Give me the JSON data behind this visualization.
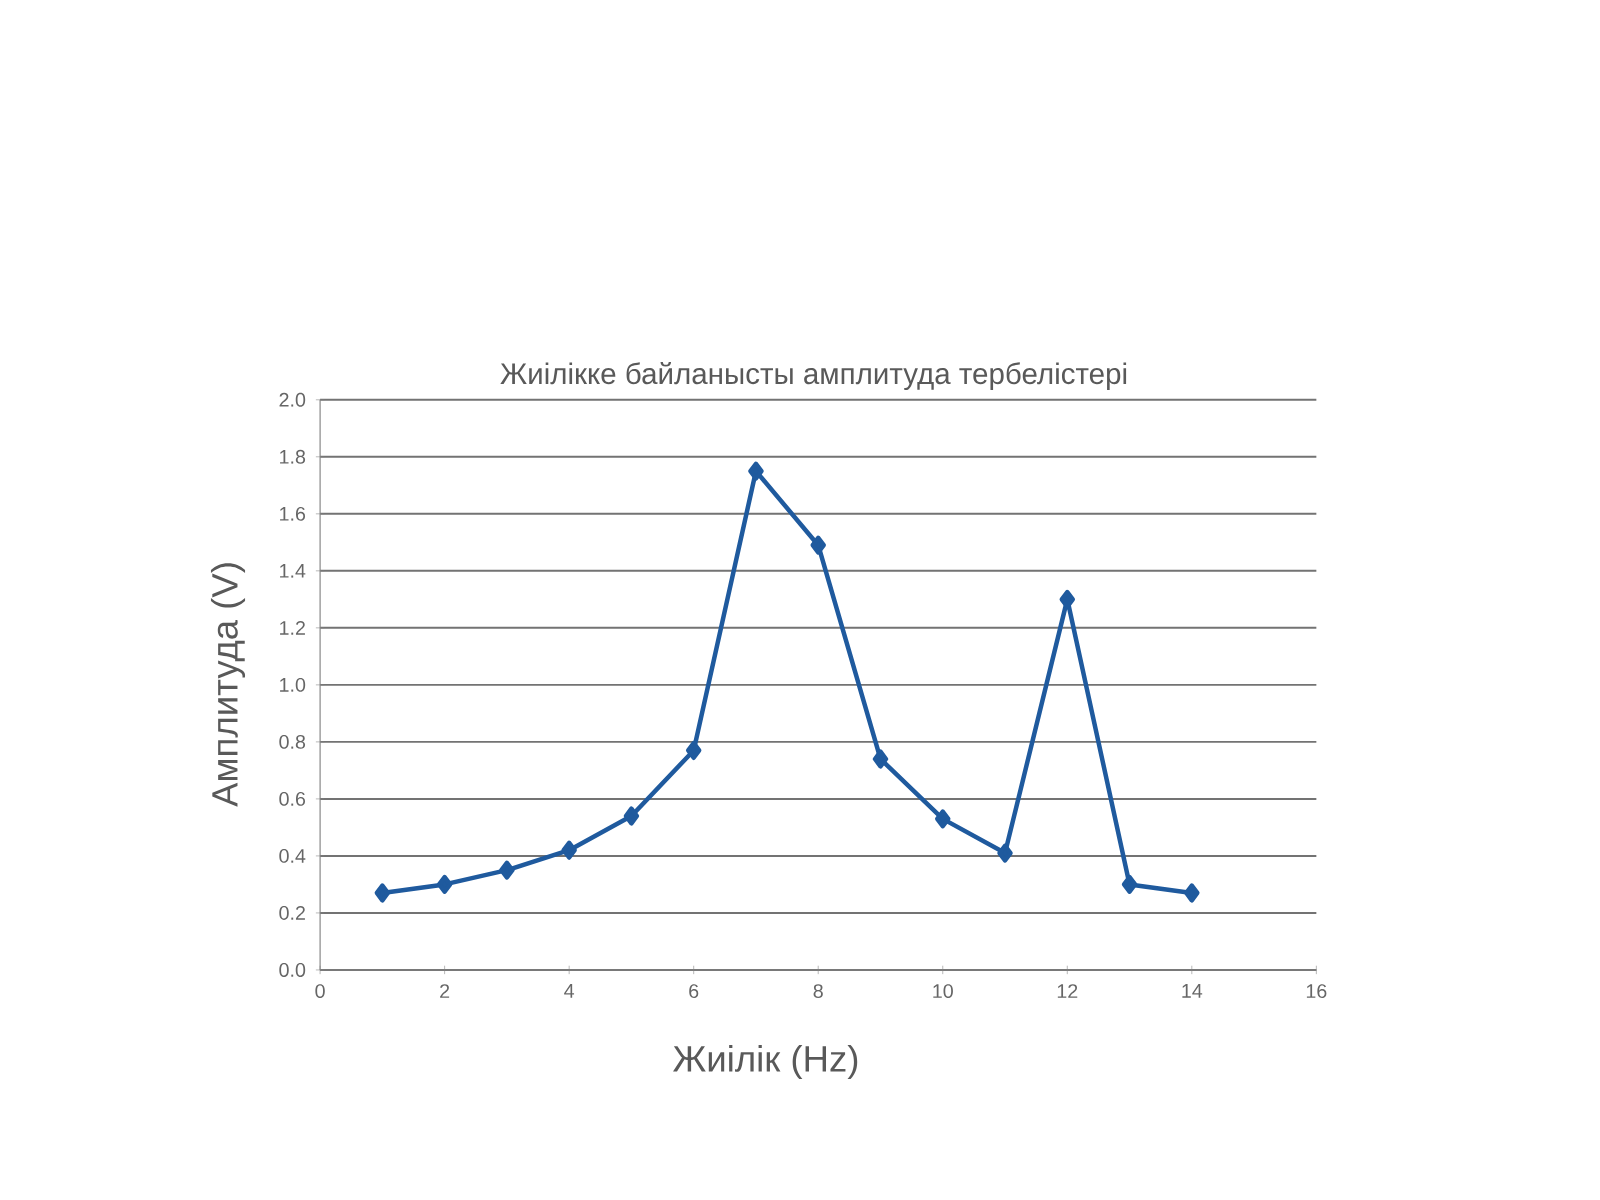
{
  "chart_data": {
    "type": "line",
    "title": "Жиілікке байланысты амплитуда тербелістері",
    "xlabel": "Жиілік (Hz)",
    "ylabel": "Амплитуда (V)",
    "x": [
      1,
      2,
      3,
      4,
      5,
      6,
      7,
      8,
      9,
      10,
      11,
      12,
      13,
      14
    ],
    "series": [
      {
        "color": "#1f5a9e",
        "values": [
          0.27,
          0.3,
          0.35,
          0.42,
          0.54,
          0.77,
          1.75,
          1.49,
          0.74,
          0.53,
          0.41,
          1.3,
          0.3,
          0.27
        ]
      }
    ],
    "xlim": [
      0,
      16
    ],
    "xticks": [
      0,
      2,
      4,
      6,
      8,
      10,
      12,
      14,
      16
    ],
    "ylim": [
      0,
      2
    ],
    "yticks": [
      {
        "value": 0,
        "label": "0.0"
      },
      {
        "value": 0.2,
        "label": "0.2"
      },
      {
        "value": 0.4,
        "label": "0.4"
      },
      {
        "value": 0.6,
        "label": "0.6"
      },
      {
        "value": 0.8,
        "label": "0.8"
      },
      {
        "value": 1.0,
        "label": "1.0"
      },
      {
        "value": 1.2,
        "label": "1.2"
      },
      {
        "value": 1.4,
        "label": "1.4"
      },
      {
        "value": 1.6,
        "label": "1.6"
      },
      {
        "value": 1.8,
        "label": "1.8"
      },
      {
        "value": 2.0,
        "label": "2.0"
      }
    ],
    "grid": "y",
    "marker": "diamond",
    "line_style": "solid"
  }
}
